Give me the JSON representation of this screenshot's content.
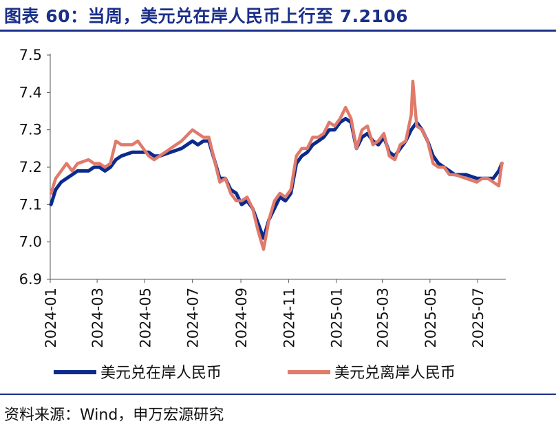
{
  "header": {
    "title": "图表 60：当周，美元兑在岸人民币上行至 7.2106",
    "title_color": "#1a2f8a",
    "rule_color": "#1a2f8a"
  },
  "footer": {
    "source": "资料来源：Wind，申万宏源研究"
  },
  "chart_data": {
    "type": "line",
    "title": "",
    "xlabel": "",
    "ylabel": "",
    "ylim": [
      6.9,
      7.5
    ],
    "yticks": [
      "6.9",
      "7.0",
      "7.1",
      "7.2",
      "7.3",
      "7.4",
      "7.5"
    ],
    "x_range": [
      "2024-01",
      "2025-08"
    ],
    "xticks": [
      "2024-01",
      "2024-03",
      "2024-05",
      "2024-07",
      "2024-09",
      "2024-11",
      "2025-01",
      "2025-03",
      "2025-05",
      "2025-07"
    ],
    "grid": false,
    "legend_position": "bottom",
    "series": [
      {
        "name": "美元兑在岸人民币",
        "color": "#0b2a8c",
        "points": [
          [
            "2024-01-02",
            7.1
          ],
          [
            "2024-01-08",
            7.14
          ],
          [
            "2024-01-15",
            7.16
          ],
          [
            "2024-01-22",
            7.17
          ],
          [
            "2024-01-29",
            7.18
          ],
          [
            "2024-02-05",
            7.19
          ],
          [
            "2024-02-19",
            7.19
          ],
          [
            "2024-02-26",
            7.2
          ],
          [
            "2024-03-04",
            7.2
          ],
          [
            "2024-03-11",
            7.19
          ],
          [
            "2024-03-18",
            7.2
          ],
          [
            "2024-03-25",
            7.22
          ],
          [
            "2024-04-01",
            7.23
          ],
          [
            "2024-04-15",
            7.24
          ],
          [
            "2024-04-22",
            7.24
          ],
          [
            "2024-05-06",
            7.24
          ],
          [
            "2024-05-13",
            7.23
          ],
          [
            "2024-05-20",
            7.23
          ],
          [
            "2024-06-03",
            7.24
          ],
          [
            "2024-06-17",
            7.25
          ],
          [
            "2024-07-01",
            7.27
          ],
          [
            "2024-07-08",
            7.26
          ],
          [
            "2024-07-15",
            7.27
          ],
          [
            "2024-07-22",
            7.27
          ],
          [
            "2024-07-29",
            7.22
          ],
          [
            "2024-08-05",
            7.17
          ],
          [
            "2024-08-12",
            7.17
          ],
          [
            "2024-08-19",
            7.14
          ],
          [
            "2024-08-26",
            7.13
          ],
          [
            "2024-09-02",
            7.1
          ],
          [
            "2024-09-09",
            7.11
          ],
          [
            "2024-09-16",
            7.09
          ],
          [
            "2024-09-23",
            7.05
          ],
          [
            "2024-09-30",
            7.01
          ],
          [
            "2024-10-07",
            7.06
          ],
          [
            "2024-10-14",
            7.09
          ],
          [
            "2024-10-21",
            7.12
          ],
          [
            "2024-10-28",
            7.11
          ],
          [
            "2024-11-04",
            7.13
          ],
          [
            "2024-11-11",
            7.21
          ],
          [
            "2024-11-18",
            7.23
          ],
          [
            "2024-11-25",
            7.24
          ],
          [
            "2024-12-02",
            7.26
          ],
          [
            "2024-12-09",
            7.27
          ],
          [
            "2024-12-16",
            7.28
          ],
          [
            "2024-12-23",
            7.3
          ],
          [
            "2024-12-30",
            7.3
          ],
          [
            "2025-01-06",
            7.32
          ],
          [
            "2025-01-13",
            7.33
          ],
          [
            "2025-01-20",
            7.32
          ],
          [
            "2025-01-27",
            7.25
          ],
          [
            "2025-02-03",
            7.28
          ],
          [
            "2025-02-10",
            7.29
          ],
          [
            "2025-02-17",
            7.27
          ],
          [
            "2025-02-24",
            7.26
          ],
          [
            "2025-03-03",
            7.28
          ],
          [
            "2025-03-10",
            7.24
          ],
          [
            "2025-03-17",
            7.23
          ],
          [
            "2025-03-24",
            7.25
          ],
          [
            "2025-03-31",
            7.27
          ],
          [
            "2025-04-07",
            7.3
          ],
          [
            "2025-04-14",
            7.32
          ],
          [
            "2025-04-21",
            7.3
          ],
          [
            "2025-04-28",
            7.27
          ],
          [
            "2025-05-05",
            7.23
          ],
          [
            "2025-05-12",
            7.21
          ],
          [
            "2025-05-19",
            7.2
          ],
          [
            "2025-05-26",
            7.19
          ],
          [
            "2025-06-02",
            7.18
          ],
          [
            "2025-06-16",
            7.18
          ],
          [
            "2025-06-30",
            7.17
          ],
          [
            "2025-07-07",
            7.17
          ],
          [
            "2025-07-14",
            7.17
          ],
          [
            "2025-07-21",
            7.17
          ],
          [
            "2025-07-28",
            7.19
          ],
          [
            "2025-08-01",
            7.21
          ]
        ]
      },
      {
        "name": "美元兑离岸人民币",
        "color": "#e07a6a",
        "points": [
          [
            "2024-01-02",
            7.13
          ],
          [
            "2024-01-08",
            7.17
          ],
          [
            "2024-01-15",
            7.19
          ],
          [
            "2024-01-22",
            7.21
          ],
          [
            "2024-01-29",
            7.19
          ],
          [
            "2024-02-05",
            7.21
          ],
          [
            "2024-02-19",
            7.22
          ],
          [
            "2024-02-26",
            7.21
          ],
          [
            "2024-03-04",
            7.21
          ],
          [
            "2024-03-11",
            7.2
          ],
          [
            "2024-03-18",
            7.21
          ],
          [
            "2024-03-25",
            7.27
          ],
          [
            "2024-04-01",
            7.26
          ],
          [
            "2024-04-15",
            7.26
          ],
          [
            "2024-04-22",
            7.27
          ],
          [
            "2024-05-06",
            7.23
          ],
          [
            "2024-05-13",
            7.22
          ],
          [
            "2024-05-20",
            7.23
          ],
          [
            "2024-06-03",
            7.25
          ],
          [
            "2024-06-17",
            7.27
          ],
          [
            "2024-07-01",
            7.3
          ],
          [
            "2024-07-08",
            7.29
          ],
          [
            "2024-07-15",
            7.28
          ],
          [
            "2024-07-22",
            7.28
          ],
          [
            "2024-07-29",
            7.22
          ],
          [
            "2024-08-05",
            7.16
          ],
          [
            "2024-08-12",
            7.17
          ],
          [
            "2024-08-19",
            7.13
          ],
          [
            "2024-08-26",
            7.11
          ],
          [
            "2024-09-02",
            7.11
          ],
          [
            "2024-09-09",
            7.12
          ],
          [
            "2024-09-16",
            7.09
          ],
          [
            "2024-09-23",
            7.03
          ],
          [
            "2024-09-30",
            6.98
          ],
          [
            "2024-10-07",
            7.06
          ],
          [
            "2024-10-14",
            7.11
          ],
          [
            "2024-10-21",
            7.13
          ],
          [
            "2024-10-28",
            7.12
          ],
          [
            "2024-11-04",
            7.14
          ],
          [
            "2024-11-11",
            7.23
          ],
          [
            "2024-11-18",
            7.25
          ],
          [
            "2024-11-25",
            7.25
          ],
          [
            "2024-12-02",
            7.28
          ],
          [
            "2024-12-09",
            7.28
          ],
          [
            "2024-12-16",
            7.29
          ],
          [
            "2024-12-23",
            7.32
          ],
          [
            "2024-12-30",
            7.31
          ],
          [
            "2025-01-06",
            7.33
          ],
          [
            "2025-01-13",
            7.36
          ],
          [
            "2025-01-20",
            7.33
          ],
          [
            "2025-01-27",
            7.25
          ],
          [
            "2025-02-03",
            7.3
          ],
          [
            "2025-02-10",
            7.31
          ],
          [
            "2025-02-17",
            7.26
          ],
          [
            "2025-02-24",
            7.27
          ],
          [
            "2025-03-03",
            7.29
          ],
          [
            "2025-03-10",
            7.23
          ],
          [
            "2025-03-17",
            7.22
          ],
          [
            "2025-03-24",
            7.26
          ],
          [
            "2025-03-31",
            7.27
          ],
          [
            "2025-04-07",
            7.34
          ],
          [
            "2025-04-09",
            7.43
          ],
          [
            "2025-04-14",
            7.31
          ],
          [
            "2025-04-21",
            7.3
          ],
          [
            "2025-04-28",
            7.27
          ],
          [
            "2025-05-05",
            7.21
          ],
          [
            "2025-05-12",
            7.2
          ],
          [
            "2025-05-19",
            7.2
          ],
          [
            "2025-05-26",
            7.18
          ],
          [
            "2025-06-02",
            7.18
          ],
          [
            "2025-06-16",
            7.17
          ],
          [
            "2025-06-30",
            7.16
          ],
          [
            "2025-07-07",
            7.17
          ],
          [
            "2025-07-14",
            7.17
          ],
          [
            "2025-07-21",
            7.16
          ],
          [
            "2025-07-28",
            7.15
          ],
          [
            "2025-08-01",
            7.21
          ]
        ]
      }
    ]
  }
}
